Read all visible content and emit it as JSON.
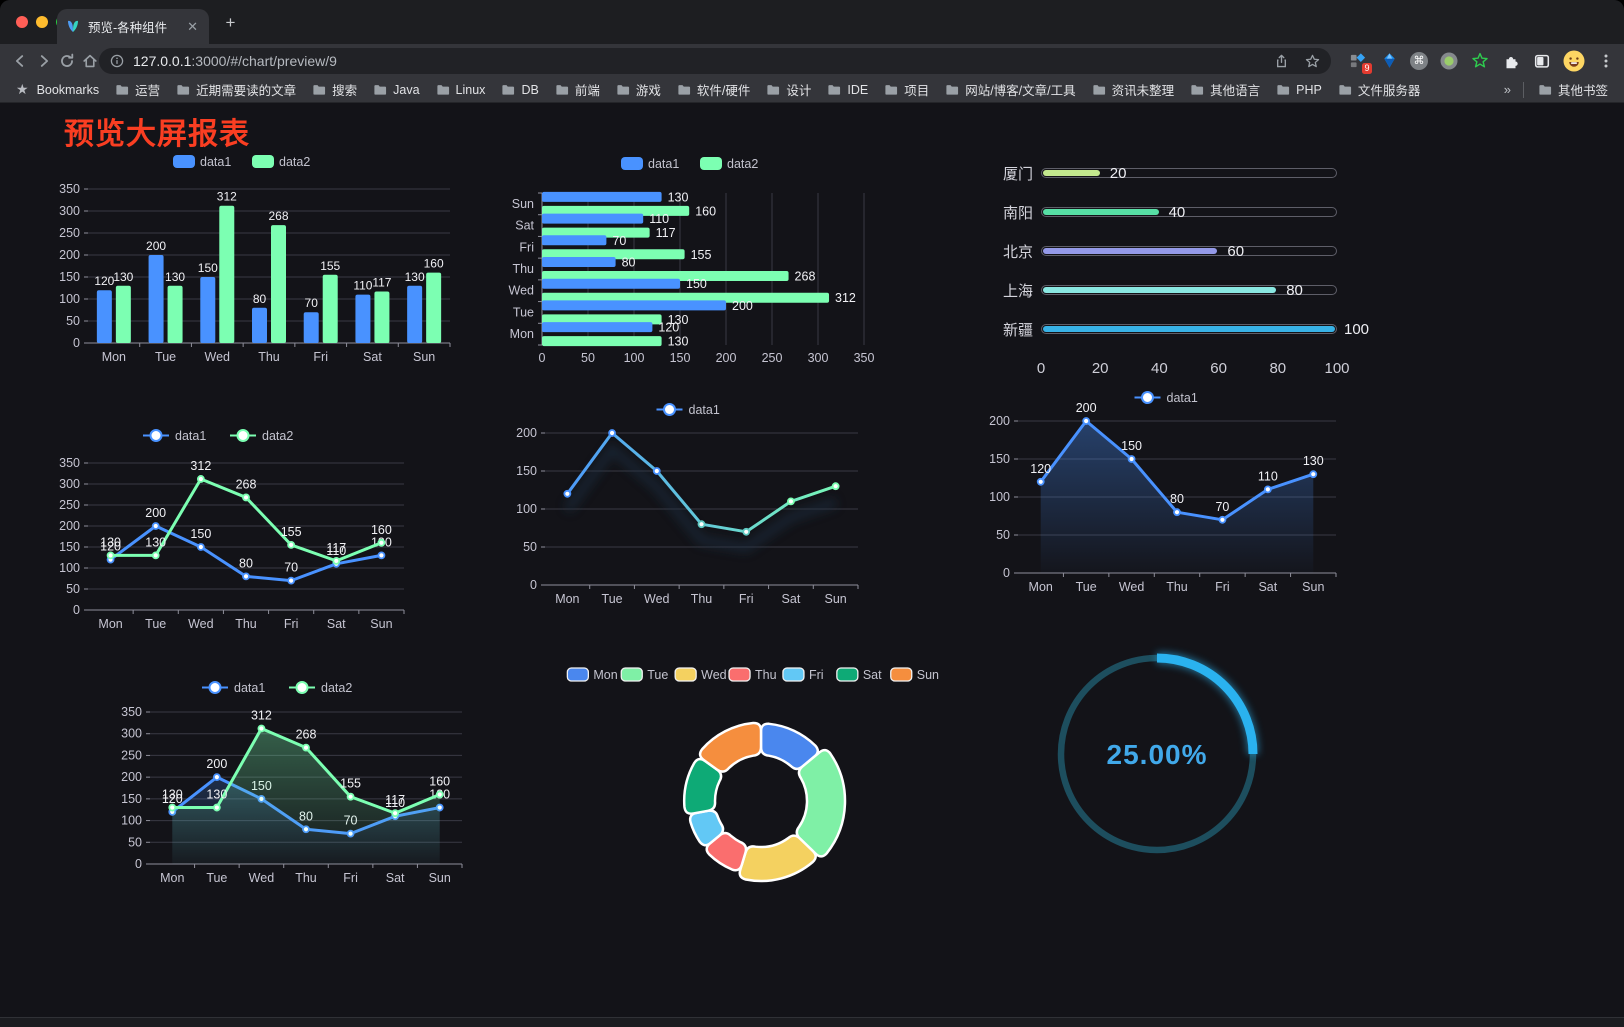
{
  "browser": {
    "tab": {
      "title": "预览-各种组件"
    },
    "url_host": "127.0.0.1",
    "url_rest": ":3000/#/chart/preview/9",
    "bookmarks_label": "Bookmarks",
    "bookmarks": [
      "运营",
      "近期需要读的文章",
      "搜索",
      "Java",
      "Linux",
      "DB",
      "前端",
      "游戏",
      "软件/硬件",
      "设计",
      "IDE",
      "项目",
      "网站/博客/文章/工具",
      "资讯未整理",
      "其他语言",
      "PHP",
      "文件服务器"
    ],
    "overflow_chevron": "»",
    "other_bookmarks": "其他书签",
    "extension_badge": "9"
  },
  "page": {
    "title": "预览大屏报表",
    "title_color": "#fa3e22"
  },
  "chart_data": [
    {
      "id": "grouped-bar",
      "type": "bar",
      "categories": [
        "Mon",
        "Tue",
        "Wed",
        "Thu",
        "Fri",
        "Sat",
        "Sun"
      ],
      "series": [
        {
          "name": "data1",
          "color": "#4992ff",
          "values": [
            120,
            200,
            150,
            80,
            70,
            110,
            130
          ]
        },
        {
          "name": "data2",
          "color": "#7cffb2",
          "values": [
            130,
            130,
            312,
            268,
            155,
            117,
            160
          ]
        }
      ],
      "ylim": [
        0,
        350
      ],
      "ytick_step": 50,
      "legend_position": "top",
      "grid": true
    },
    {
      "id": "grouped-hbar",
      "type": "hbar",
      "categories": [
        "Mon",
        "Tue",
        "Wed",
        "Thu",
        "Fri",
        "Sat",
        "Sun"
      ],
      "series": [
        {
          "name": "data1",
          "color": "#4992ff",
          "values": [
            120,
            200,
            150,
            80,
            70,
            110,
            130
          ]
        },
        {
          "name": "data2",
          "color": "#7cffb2",
          "values": [
            130,
            130,
            312,
            268,
            155,
            117,
            160
          ]
        }
      ],
      "xlim": [
        0,
        350
      ],
      "xtick_step": 50,
      "legend_position": "top",
      "grid": true
    },
    {
      "id": "city-progress",
      "type": "progress",
      "max": 100,
      "xticks": [
        0,
        20,
        40,
        60,
        80,
        100
      ],
      "rows": [
        {
          "label": "厦门",
          "value": 20,
          "color": "#c3e88d"
        },
        {
          "label": "南阳",
          "value": 40,
          "color": "#57dfa5"
        },
        {
          "label": "北京",
          "value": 60,
          "color": "#9499e8"
        },
        {
          "label": "上海",
          "value": 80,
          "color": "#8ae8e2"
        },
        {
          "label": "新疆",
          "value": 100,
          "color": "#38b2e6"
        }
      ]
    },
    {
      "id": "dual-line",
      "type": "line",
      "categories": [
        "Mon",
        "Tue",
        "Wed",
        "Thu",
        "Fri",
        "Sat",
        "Sun"
      ],
      "series": [
        {
          "name": "data1",
          "color": "#4992ff",
          "values": [
            120,
            200,
            150,
            80,
            70,
            110,
            130
          ]
        },
        {
          "name": "data2",
          "color": "#7cffb2",
          "values": [
            130,
            130,
            312,
            268,
            155,
            117,
            160
          ]
        }
      ],
      "ylim": [
        0,
        350
      ],
      "ytick_step": 50,
      "show_labels": true,
      "legend_position": "top"
    },
    {
      "id": "gradient-line",
      "type": "line",
      "categories": [
        "Mon",
        "Tue",
        "Wed",
        "Thu",
        "Fri",
        "Sat",
        "Sun"
      ],
      "series": [
        {
          "name": "data1",
          "colors": [
            "#4992ff",
            "#7cffb2"
          ],
          "values": [
            120,
            200,
            150,
            80,
            70,
            110,
            130
          ]
        }
      ],
      "ylim": [
        0,
        200
      ],
      "ytick_step": 50,
      "show_labels": false,
      "legend_position": "top"
    },
    {
      "id": "area-line",
      "type": "line",
      "categories": [
        "Mon",
        "Tue",
        "Wed",
        "Thu",
        "Fri",
        "Sat",
        "Sun"
      ],
      "series": [
        {
          "name": "data1",
          "color": "#4992ff",
          "values": [
            120,
            200,
            150,
            80,
            70,
            110,
            130
          ],
          "area": true
        }
      ],
      "ylim": [
        0,
        200
      ],
      "ytick_step": 50,
      "show_labels": true,
      "legend_position": "top"
    },
    {
      "id": "dual-area-line",
      "type": "line",
      "categories": [
        "Mon",
        "Tue",
        "Wed",
        "Thu",
        "Fri",
        "Sat",
        "Sun"
      ],
      "series": [
        {
          "name": "data1",
          "color": "#4992ff",
          "values": [
            120,
            200,
            150,
            80,
            70,
            110,
            130
          ],
          "area": true
        },
        {
          "name": "data2",
          "color": "#7cffb2",
          "values": [
            130,
            130,
            312,
            268,
            155,
            117,
            160
          ],
          "area": true
        }
      ],
      "ylim": [
        0,
        350
      ],
      "ytick_step": 50,
      "show_labels": true,
      "legend_position": "top"
    },
    {
      "id": "rose-pie",
      "type": "pie",
      "rose": true,
      "items": [
        {
          "label": "Mon",
          "value": 120,
          "color": "#4a87ee"
        },
        {
          "label": "Tue",
          "value": 200,
          "color": "#7ff0a6"
        },
        {
          "label": "Wed",
          "value": 150,
          "color": "#f4d160"
        },
        {
          "label": "Thu",
          "value": 80,
          "color": "#fa6e6e"
        },
        {
          "label": "Fri",
          "value": 70,
          "color": "#62c8f5"
        },
        {
          "label": "Sat",
          "value": 110,
          "color": "#0eaa76"
        },
        {
          "label": "Sun",
          "value": 130,
          "color": "#f58e3e"
        }
      ],
      "legend_position": "top"
    },
    {
      "id": "gauge",
      "type": "gauge",
      "percent": 25,
      "value_label": "25.00%",
      "color": "#2ab2ef",
      "track_color": "#1d4e5e",
      "text_color": "#41a9ea"
    }
  ]
}
